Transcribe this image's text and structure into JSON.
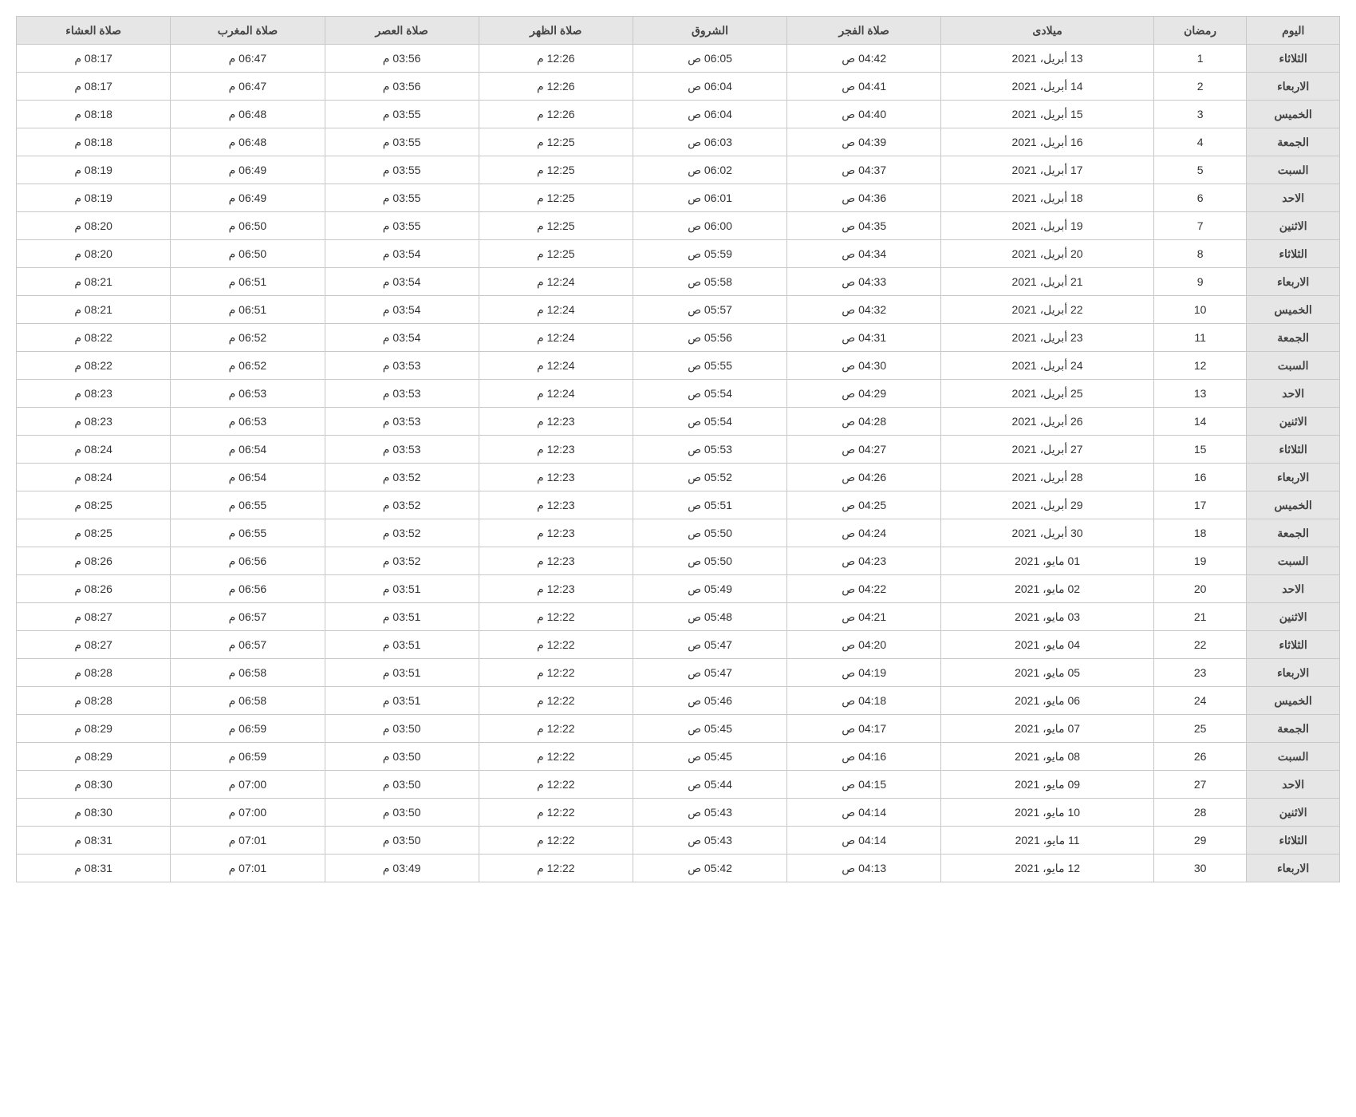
{
  "table": {
    "columns": [
      "اليوم",
      "رمضان",
      "ميلادى",
      "صلاة الفجر",
      "الشروق",
      "صلاة الظهر",
      "صلاة العصر",
      "صلاة المغرب",
      "صلاة العشاء"
    ],
    "rows": [
      [
        "الثلاثاء",
        "1",
        "13 أبريل، 2021",
        "04:42 ص",
        "06:05 ص",
        "12:26 م",
        "03:56 م",
        "06:47 م",
        "08:17 م"
      ],
      [
        "الاربعاء",
        "2",
        "14 أبريل، 2021",
        "04:41 ص",
        "06:04 ص",
        "12:26 م",
        "03:56 م",
        "06:47 م",
        "08:17 م"
      ],
      [
        "الخميس",
        "3",
        "15 أبريل، 2021",
        "04:40 ص",
        "06:04 ص",
        "12:26 م",
        "03:55 م",
        "06:48 م",
        "08:18 م"
      ],
      [
        "الجمعة",
        "4",
        "16 أبريل، 2021",
        "04:39 ص",
        "06:03 ص",
        "12:25 م",
        "03:55 م",
        "06:48 م",
        "08:18 م"
      ],
      [
        "السبت",
        "5",
        "17 أبريل، 2021",
        "04:37 ص",
        "06:02 ص",
        "12:25 م",
        "03:55 م",
        "06:49 م",
        "08:19 م"
      ],
      [
        "الاحد",
        "6",
        "18 أبريل، 2021",
        "04:36 ص",
        "06:01 ص",
        "12:25 م",
        "03:55 م",
        "06:49 م",
        "08:19 م"
      ],
      [
        "الاثنين",
        "7",
        "19 أبريل، 2021",
        "04:35 ص",
        "06:00 ص",
        "12:25 م",
        "03:55 م",
        "06:50 م",
        "08:20 م"
      ],
      [
        "الثلاثاء",
        "8",
        "20 أبريل، 2021",
        "04:34 ص",
        "05:59 ص",
        "12:25 م",
        "03:54 م",
        "06:50 م",
        "08:20 م"
      ],
      [
        "الاربعاء",
        "9",
        "21 أبريل، 2021",
        "04:33 ص",
        "05:58 ص",
        "12:24 م",
        "03:54 م",
        "06:51 م",
        "08:21 م"
      ],
      [
        "الخميس",
        "10",
        "22 أبريل، 2021",
        "04:32 ص",
        "05:57 ص",
        "12:24 م",
        "03:54 م",
        "06:51 م",
        "08:21 م"
      ],
      [
        "الجمعة",
        "11",
        "23 أبريل، 2021",
        "04:31 ص",
        "05:56 ص",
        "12:24 م",
        "03:54 م",
        "06:52 م",
        "08:22 م"
      ],
      [
        "السبت",
        "12",
        "24 أبريل، 2021",
        "04:30 ص",
        "05:55 ص",
        "12:24 م",
        "03:53 م",
        "06:52 م",
        "08:22 م"
      ],
      [
        "الاحد",
        "13",
        "25 أبريل، 2021",
        "04:29 ص",
        "05:54 ص",
        "12:24 م",
        "03:53 م",
        "06:53 م",
        "08:23 م"
      ],
      [
        "الاثنين",
        "14",
        "26 أبريل، 2021",
        "04:28 ص",
        "05:54 ص",
        "12:23 م",
        "03:53 م",
        "06:53 م",
        "08:23 م"
      ],
      [
        "الثلاثاء",
        "15",
        "27 أبريل، 2021",
        "04:27 ص",
        "05:53 ص",
        "12:23 م",
        "03:53 م",
        "06:54 م",
        "08:24 م"
      ],
      [
        "الاربعاء",
        "16",
        "28 أبريل، 2021",
        "04:26 ص",
        "05:52 ص",
        "12:23 م",
        "03:52 م",
        "06:54 م",
        "08:24 م"
      ],
      [
        "الخميس",
        "17",
        "29 أبريل، 2021",
        "04:25 ص",
        "05:51 ص",
        "12:23 م",
        "03:52 م",
        "06:55 م",
        "08:25 م"
      ],
      [
        "الجمعة",
        "18",
        "30 أبريل، 2021",
        "04:24 ص",
        "05:50 ص",
        "12:23 م",
        "03:52 م",
        "06:55 م",
        "08:25 م"
      ],
      [
        "السبت",
        "19",
        "01 مايو، 2021",
        "04:23 ص",
        "05:50 ص",
        "12:23 م",
        "03:52 م",
        "06:56 م",
        "08:26 م"
      ],
      [
        "الاحد",
        "20",
        "02 مايو، 2021",
        "04:22 ص",
        "05:49 ص",
        "12:23 م",
        "03:51 م",
        "06:56 م",
        "08:26 م"
      ],
      [
        "الاثنين",
        "21",
        "03 مايو، 2021",
        "04:21 ص",
        "05:48 ص",
        "12:22 م",
        "03:51 م",
        "06:57 م",
        "08:27 م"
      ],
      [
        "الثلاثاء",
        "22",
        "04 مايو، 2021",
        "04:20 ص",
        "05:47 ص",
        "12:22 م",
        "03:51 م",
        "06:57 م",
        "08:27 م"
      ],
      [
        "الاربعاء",
        "23",
        "05 مايو، 2021",
        "04:19 ص",
        "05:47 ص",
        "12:22 م",
        "03:51 م",
        "06:58 م",
        "08:28 م"
      ],
      [
        "الخميس",
        "24",
        "06 مايو، 2021",
        "04:18 ص",
        "05:46 ص",
        "12:22 م",
        "03:51 م",
        "06:58 م",
        "08:28 م"
      ],
      [
        "الجمعة",
        "25",
        "07 مايو، 2021",
        "04:17 ص",
        "05:45 ص",
        "12:22 م",
        "03:50 م",
        "06:59 م",
        "08:29 م"
      ],
      [
        "السبت",
        "26",
        "08 مايو، 2021",
        "04:16 ص",
        "05:45 ص",
        "12:22 م",
        "03:50 م",
        "06:59 م",
        "08:29 م"
      ],
      [
        "الاحد",
        "27",
        "09 مايو، 2021",
        "04:15 ص",
        "05:44 ص",
        "12:22 م",
        "03:50 م",
        "07:00 م",
        "08:30 م"
      ],
      [
        "الاثنين",
        "28",
        "10 مايو، 2021",
        "04:14 ص",
        "05:43 ص",
        "12:22 م",
        "03:50 م",
        "07:00 م",
        "08:30 م"
      ],
      [
        "الثلاثاء",
        "29",
        "11 مايو، 2021",
        "04:14 ص",
        "05:43 ص",
        "12:22 م",
        "03:50 م",
        "07:01 م",
        "08:31 م"
      ],
      [
        "الاربعاء",
        "30",
        "12 مايو، 2021",
        "04:13 ص",
        "05:42 ص",
        "12:22 م",
        "03:49 م",
        "07:01 م",
        "08:31 م"
      ]
    ],
    "header_bg": "#e6e6e6",
    "border_color": "#c8c8c8",
    "text_color": "#333333",
    "day_cell_bg": "#e6e6e6"
  }
}
